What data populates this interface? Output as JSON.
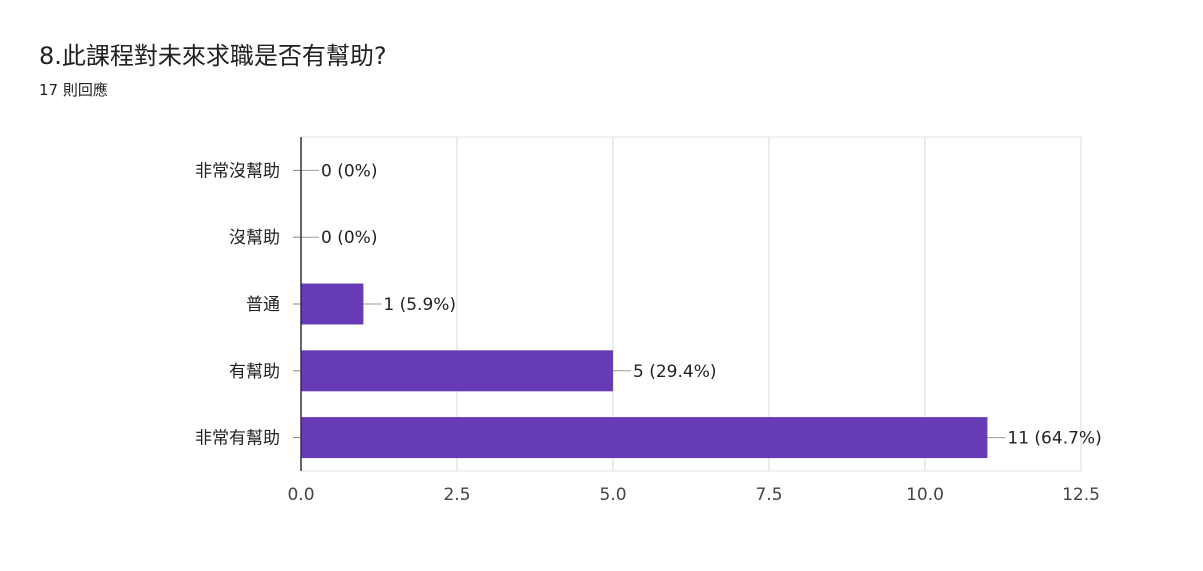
{
  "chart_data": {
    "type": "bar",
    "orientation": "horizontal",
    "title": "8.此課程對未來求職是否有幫助?",
    "subtitle": "17 則回應",
    "categories": [
      "非常沒幫助",
      "沒幫助",
      "普通",
      "有幫助",
      "非常有幫助"
    ],
    "values": [
      0,
      0,
      1,
      5,
      11
    ],
    "data_labels": [
      "0 (0%)",
      "0 (0%)",
      "1 (5.9%)",
      "5 (29.4%)",
      "11 (64.7%)"
    ],
    "xlim": [
      0,
      12.5
    ],
    "x_ticks": [
      0,
      2.5,
      5,
      7.5,
      10,
      12.5
    ],
    "x_tick_labels": [
      "0.0",
      "2.5",
      "5.0",
      "7.5",
      "10.0",
      "12.5"
    ],
    "grid": true,
    "bar_color": "#673ab7"
  }
}
